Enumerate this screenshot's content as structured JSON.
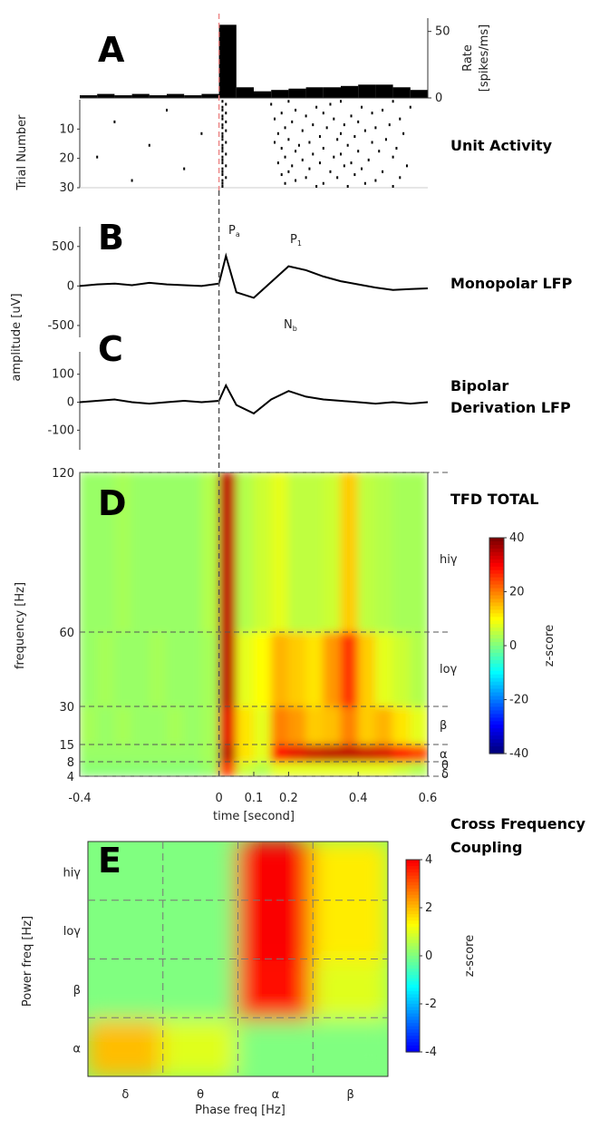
{
  "chart_data": [
    {
      "type": "histogram_raster",
      "label": "A",
      "title": "Unit Activity",
      "y_label": [
        "Rate",
        "[spikes/ms]"
      ],
      "raster_label": "Trial Number",
      "xlim": [
        -0.4,
        0.6
      ],
      "bins": [
        -0.4,
        -0.35,
        -0.3,
        -0.25,
        -0.2,
        -0.15,
        -0.1,
        -0.05,
        0,
        0.05,
        0.1,
        0.15,
        0.2,
        0.25,
        0.3,
        0.35,
        0.4,
        0.45,
        0.5,
        0.55,
        0.6
      ],
      "values": [
        2,
        3,
        2,
        3,
        2,
        3,
        2,
        3,
        55,
        8,
        5,
        6,
        7,
        8,
        8,
        9,
        10,
        10,
        8,
        6
      ],
      "ylim": [
        0,
        60
      ],
      "yticks": [
        0,
        50
      ],
      "color": "#000000",
      "raster": {
        "ylim": [
          0,
          30
        ],
        "yticks": [
          10,
          20,
          30
        ],
        "trials": [
          [
            0.01,
            0.2,
            0.35,
            0.5
          ],
          [
            0.02,
            0.15,
            0.32
          ],
          [
            0.01,
            0.28,
            0.41,
            0.55
          ],
          [
            -0.15,
            0.01,
            0.22,
            0.47
          ],
          [
            0.02,
            0.18,
            0.3,
            0.44
          ],
          [
            0.01,
            0.25,
            0.38
          ],
          [
            0.01,
            0.16,
            0.33,
            0.52
          ],
          [
            -0.3,
            0.02,
            0.21,
            0.4
          ],
          [
            0.01,
            0.27,
            0.36,
            0.49
          ],
          [
            0.01,
            0.19,
            0.31,
            0.45
          ],
          [
            0.02,
            0.24,
            0.42
          ],
          [
            -0.05,
            0.01,
            0.17,
            0.35,
            0.53
          ],
          [
            0.01,
            0.29,
            0.39
          ],
          [
            0.01,
            0.2,
            0.34,
            0.48
          ],
          [
            0.02,
            0.16,
            0.26,
            0.44
          ],
          [
            -0.2,
            0.01,
            0.23,
            0.37
          ],
          [
            0.01,
            0.18,
            0.3,
            0.51
          ],
          [
            0.01,
            0.22,
            0.4,
            0.46
          ],
          [
            0.02,
            0.27,
            0.35
          ],
          [
            -0.35,
            0.01,
            0.19,
            0.33,
            0.5
          ],
          [
            0.01,
            0.24,
            0.43
          ],
          [
            0.01,
            0.17,
            0.29,
            0.38
          ],
          [
            0.02,
            0.21,
            0.36,
            0.54
          ],
          [
            -0.1,
            0.01,
            0.26,
            0.41
          ],
          [
            0.01,
            0.2,
            0.32,
            0.47
          ],
          [
            0.01,
            0.18,
            0.39
          ],
          [
            0.02,
            0.25,
            0.34,
            0.52
          ],
          [
            -0.25,
            0.01,
            0.22,
            0.45
          ],
          [
            0.01,
            0.19,
            0.3,
            0.42
          ],
          [
            0.01,
            0.28,
            0.37,
            0.5
          ]
        ]
      }
    },
    {
      "type": "line",
      "label": "B",
      "title": [
        "Monopolar LFP"
      ],
      "y_label": "amplitude [uV]",
      "xlim": [
        -0.4,
        0.6
      ],
      "x": [
        -0.4,
        -0.35,
        -0.3,
        -0.25,
        -0.2,
        -0.15,
        -0.1,
        -0.05,
        0,
        0.02,
        0.05,
        0.1,
        0.15,
        0.2,
        0.25,
        0.3,
        0.35,
        0.4,
        0.45,
        0.5,
        0.55,
        0.6
      ],
      "values": [
        0,
        20,
        30,
        10,
        40,
        20,
        10,
        0,
        30,
        380,
        -80,
        -150,
        50,
        250,
        200,
        120,
        60,
        20,
        -20,
        -50,
        -40,
        -30
      ],
      "ylim": [
        -650,
        750
      ],
      "yticks": [
        -500,
        0,
        500
      ],
      "color": "#000000",
      "annotations": [
        {
          "text": "P",
          "sub": "a"
        },
        {
          "text": "N",
          "sub": "b"
        },
        {
          "text": "P",
          "sub": "1"
        }
      ]
    },
    {
      "type": "line",
      "label": "C",
      "title": [
        "Bipolar",
        "Derivation LFP"
      ],
      "xlim": [
        -0.4,
        0.6
      ],
      "x": [
        -0.4,
        -0.35,
        -0.3,
        -0.25,
        -0.2,
        -0.15,
        -0.1,
        -0.05,
        0,
        0.02,
        0.05,
        0.1,
        0.15,
        0.2,
        0.25,
        0.3,
        0.35,
        0.4,
        0.45,
        0.5,
        0.55,
        0.6
      ],
      "values": [
        0,
        5,
        10,
        0,
        -5,
        0,
        5,
        0,
        5,
        60,
        -10,
        -40,
        10,
        40,
        20,
        10,
        5,
        0,
        -5,
        0,
        -5,
        0
      ],
      "ylim": [
        -170,
        180
      ],
      "yticks": [
        -100,
        0,
        100
      ],
      "color": "#000000"
    },
    {
      "type": "heatmap",
      "label": "D",
      "title": "TFD TOTAL",
      "x_label": "time [second]",
      "y_label": "frequency [Hz]",
      "xlim": [
        -0.4,
        0.6
      ],
      "xticks": [
        -0.4,
        0,
        0.1,
        0.2,
        0.4,
        0.6
      ],
      "ylim": [
        4,
        120
      ],
      "yticks": [
        4,
        8,
        15,
        30,
        60,
        120
      ],
      "band_labels": [
        "hiγ",
        "loγ",
        "β",
        "α",
        "θ",
        "δ"
      ],
      "xbins": [
        -0.4,
        -0.35,
        -0.3,
        -0.25,
        -0.2,
        -0.15,
        -0.1,
        -0.05,
        0,
        0.05,
        0.1,
        0.15,
        0.2,
        0.25,
        0.3,
        0.35,
        0.4,
        0.45,
        0.5,
        0.55,
        0.6
      ],
      "ybins": [
        4,
        8,
        15,
        30,
        60,
        120
      ],
      "values": [
        [
          1,
          1,
          1,
          1,
          1,
          1,
          1,
          2,
          25,
          6,
          4,
          8,
          8,
          8,
          8,
          8,
          8,
          8,
          6,
          4
        ],
        [
          2,
          2,
          2,
          2,
          2,
          2,
          2,
          3,
          35,
          12,
          8,
          30,
          32,
          34,
          35,
          35,
          34,
          33,
          30,
          25
        ],
        [
          3,
          2,
          3,
          2,
          2,
          3,
          2,
          3,
          32,
          12,
          8,
          20,
          18,
          14,
          15,
          20,
          14,
          16,
          12,
          8
        ],
        [
          2,
          3,
          2,
          2,
          3,
          2,
          2,
          3,
          35,
          8,
          10,
          16,
          14,
          12,
          18,
          26,
          14,
          8,
          6,
          4
        ],
        [
          2,
          2,
          3,
          2,
          2,
          2,
          2,
          4,
          35,
          4,
          6,
          8,
          5,
          5,
          6,
          14,
          5,
          4,
          3,
          3
        ]
      ],
      "colorbar": {
        "label": "z-score",
        "lim": [
          -40,
          40
        ],
        "ticks": [
          40,
          20,
          0,
          -20,
          -40
        ]
      }
    },
    {
      "type": "heatmap_categorical",
      "label": "E",
      "title": [
        "Cross Frequency",
        "Coupling"
      ],
      "x_label": "Phase freq [Hz]",
      "y_label": "Power freq [Hz]",
      "x_categories": [
        "δ",
        "θ",
        "α",
        "β"
      ],
      "y_categories": [
        "α",
        "β",
        "loγ",
        "hiγ"
      ],
      "values": [
        [
          2,
          1,
          0,
          0
        ],
        [
          0,
          0,
          3.8,
          1
        ],
        [
          0,
          0,
          4,
          1.5
        ],
        [
          0,
          0,
          4,
          1.5
        ]
      ],
      "colorbar": {
        "label": "z-score",
        "lim": [
          -4,
          4
        ],
        "ticks": [
          4,
          2,
          0,
          -2,
          -4
        ]
      }
    }
  ]
}
